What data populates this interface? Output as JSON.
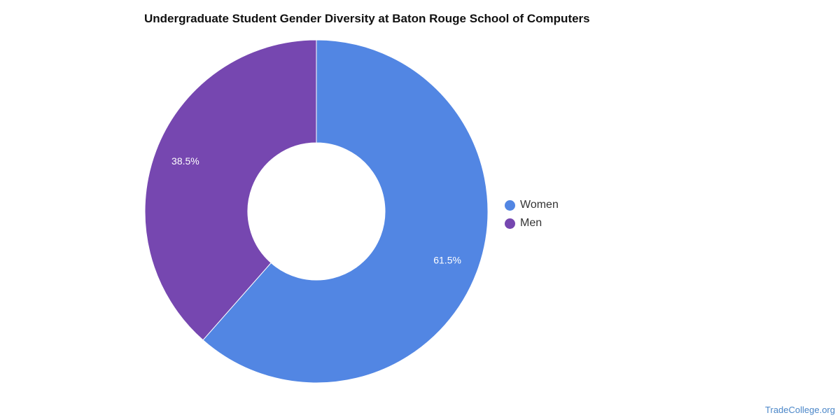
{
  "chart_data": {
    "type": "pie",
    "donut": true,
    "title": "Undergraduate Student Gender Diversity at Baton Rouge School of Computers",
    "slices": [
      {
        "label": "Women",
        "value": 61.5,
        "display": "61.5%",
        "color": "#5286e3"
      },
      {
        "label": "Men",
        "value": 38.5,
        "display": "38.5%",
        "color": "#7647b0"
      }
    ],
    "legend_position": "right"
  },
  "footer": {
    "watermark": "TradeCollege.org"
  }
}
